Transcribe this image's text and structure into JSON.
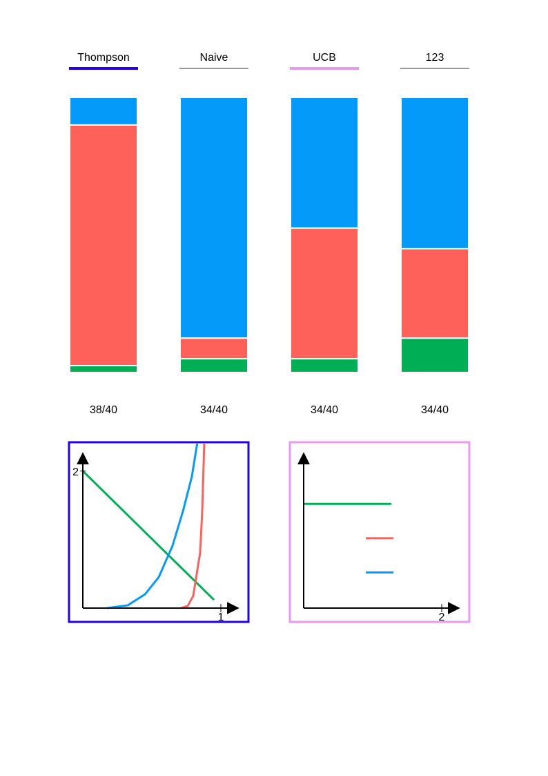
{
  "chart_data": [
    {
      "type": "stacked-bar",
      "categories": [
        "Thompson",
        "Naive",
        "UCB",
        "123"
      ],
      "category_colors": [
        "#2200ee",
        "#777777",
        "#e89af0",
        "#777777"
      ],
      "annotations": [
        "38/40",
        "34/40",
        "34/40",
        "34/40"
      ],
      "ylim": [
        0,
        40
      ],
      "series": [
        {
          "color": "#00af55",
          "values": [
            1,
            2,
            2,
            5
          ]
        },
        {
          "color": "#fe605a",
          "values": [
            35,
            3,
            19,
            13
          ]
        },
        {
          "color": "#039af9",
          "values": [
            4,
            35,
            19,
            22
          ]
        }
      ]
    },
    {
      "type": "line",
      "frame_color": "#2200ee",
      "xlim": [
        0,
        1.125
      ],
      "ylim": [
        0,
        2.42
      ],
      "xticks": [
        1
      ],
      "yticks": [
        2
      ],
      "series": [
        {
          "color": "#00af55",
          "x": [
            0,
            0.95
          ],
          "values": [
            2,
            0.12
          ]
        },
        {
          "color": "#039af9",
          "x": [
            0.175,
            0.325,
            0.45,
            0.55,
            0.65,
            0.725,
            0.79,
            0.83
          ],
          "values": [
            0,
            0.04,
            0.2,
            0.45,
            0.91,
            1.41,
            1.92,
            2.42
          ]
        },
        {
          "color": "#fe605a",
          "x": [
            0.71,
            0.76,
            0.8,
            0.85,
            0.865,
            0.88
          ],
          "values": [
            0,
            0.03,
            0.18,
            0.81,
            1.41,
            2.42
          ]
        }
      ]
    },
    {
      "type": "line",
      "frame_color": "#e89af0",
      "xlim": [
        0,
        2.25
      ],
      "ylim": [
        0,
        2.42
      ],
      "xticks": [
        2
      ],
      "yticks": [],
      "series": [
        {
          "color": "#00af55",
          "x": [
            0,
            1.27
          ],
          "values": [
            1.52,
            1.52
          ]
        },
        {
          "color": "#fe605a",
          "x": [
            0.9,
            1.3
          ],
          "values": [
            1.02,
            1.02
          ]
        },
        {
          "color": "#039af9",
          "x": [
            0.9,
            1.3
          ],
          "values": [
            0.52,
            0.52
          ]
        }
      ]
    }
  ]
}
